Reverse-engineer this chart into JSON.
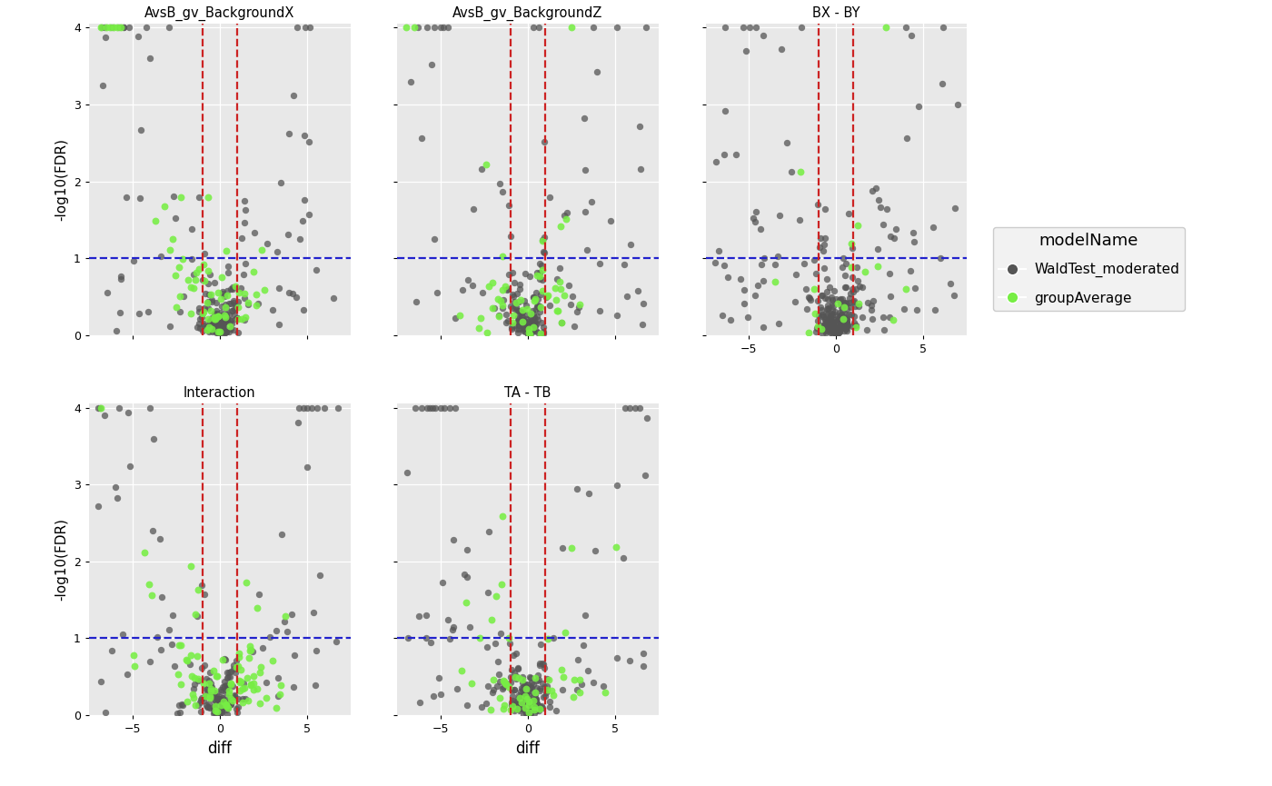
{
  "panels": [
    {
      "title": "AvsB_gv_BackgroundX",
      "row": 0,
      "col": 0
    },
    {
      "title": "AvsB_gv_BackgroundZ",
      "row": 0,
      "col": 1
    },
    {
      "title": "BX - BY",
      "row": 0,
      "col": 2
    },
    {
      "title": "Interaction",
      "row": 1,
      "col": 0
    },
    {
      "title": "TA - TB",
      "row": 1,
      "col": 1
    }
  ],
  "ylabel": "-log10(FDR)",
  "xlabel": "diff",
  "ylim": [
    0,
    4.05
  ],
  "xlim": [
    -7.5,
    7.5
  ],
  "hline_y": 1.0,
  "vline_x": [
    -1.0,
    1.0
  ],
  "hline_color": "#2222CC",
  "vline_color": "#CC2222",
  "color_moderated": "#555555",
  "color_imputation": "#77EE44",
  "bg_panel": "#E8E8E8",
  "bg_figure": "#FFFFFF",
  "legend_title": "modelName",
  "legend_labels": [
    "WaldTest_moderated",
    "groupAverage"
  ],
  "alpha_mod": 0.75,
  "alpha_imp": 0.88,
  "point_size_mod": 28,
  "point_size_imp": 32,
  "yticks": [
    0,
    1,
    2,
    3,
    4
  ],
  "xticks": [
    -5,
    0,
    5
  ]
}
